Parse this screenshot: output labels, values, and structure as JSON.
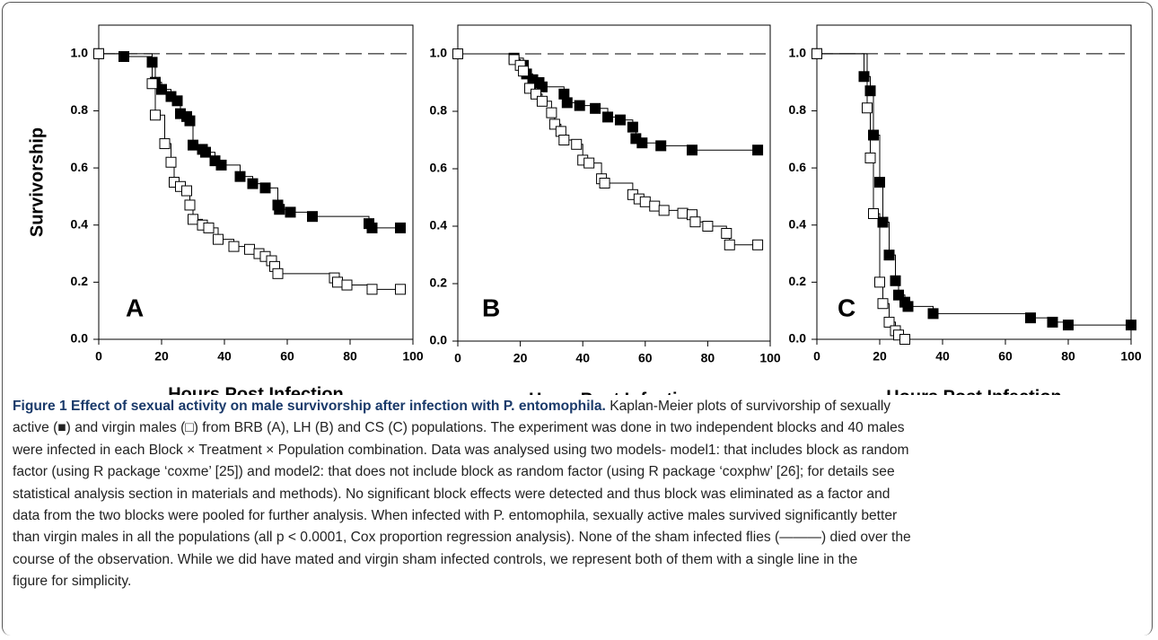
{
  "chart_data": [
    {
      "type": "step",
      "panel_label": "A",
      "ylabel": "Survivorship",
      "xlabel": "Hours Post Infection",
      "xlim": [
        0,
        100
      ],
      "xticks": [
        0,
        20,
        40,
        60,
        80,
        100
      ],
      "ylim": [
        0,
        1.1
      ],
      "yticks": [
        {
          "value": 0,
          "label": "0.0"
        },
        0.2,
        0.4,
        0.6,
        0.8,
        {
          "value": 1,
          "label": "1.0"
        }
      ],
      "reference_line": 1.0,
      "series": [
        {
          "color": "#000000",
          "marker_fill": "#000000",
          "x": [
            0,
            8,
            17,
            18,
            20,
            23,
            25,
            26,
            28,
            29,
            30,
            33,
            34,
            37,
            39,
            45,
            49,
            53,
            57,
            57.5,
            61,
            68,
            86,
            87,
            96
          ],
          "values": [
            1.0,
            0.99,
            0.97,
            0.9,
            0.875,
            0.85,
            0.835,
            0.79,
            0.78,
            0.765,
            0.68,
            0.665,
            0.655,
            0.625,
            0.61,
            0.57,
            0.545,
            0.53,
            0.47,
            0.455,
            0.445,
            0.43,
            0.405,
            0.39,
            0.39
          ]
        },
        {
          "color": "#000000",
          "marker_fill": "#ffffff",
          "x": [
            0,
            17,
            18,
            21,
            23,
            24,
            26,
            28,
            29,
            30,
            33,
            35,
            38,
            43,
            48,
            51,
            53,
            55,
            56,
            57,
            75,
            76,
            79,
            87,
            96
          ],
          "values": [
            1.0,
            0.895,
            0.785,
            0.685,
            0.62,
            0.55,
            0.535,
            0.52,
            0.47,
            0.42,
            0.4,
            0.39,
            0.35,
            0.325,
            0.315,
            0.3,
            0.29,
            0.275,
            0.255,
            0.23,
            0.215,
            0.2,
            0.19,
            0.175,
            0.175
          ]
        }
      ]
    },
    {
      "type": "step",
      "panel_label": "B",
      "xlabel": "HoursPost Infection",
      "xlim": [
        0,
        100
      ],
      "xticks": [
        0,
        20,
        40,
        60,
        80,
        100
      ],
      "ylim": [
        0,
        1.1
      ],
      "yticks": [
        {
          "value": 0,
          "label": "0.0"
        },
        0.2,
        0.4,
        0.6,
        0.8,
        {
          "value": 1,
          "label": "1.0"
        }
      ],
      "reference_line": 1.0,
      "series": [
        {
          "color": "#000000",
          "marker_fill": "#000000",
          "x": [
            0,
            18,
            21,
            22,
            24,
            26,
            27,
            34,
            35,
            39,
            44,
            48,
            52,
            56,
            57,
            59,
            65,
            75,
            96
          ],
          "values": [
            1.0,
            0.985,
            0.96,
            0.93,
            0.91,
            0.9,
            0.885,
            0.86,
            0.83,
            0.82,
            0.81,
            0.78,
            0.77,
            0.745,
            0.705,
            0.69,
            0.68,
            0.665,
            0.665
          ]
        },
        {
          "color": "#000000",
          "marker_fill": "#ffffff",
          "x": [
            0,
            18,
            20,
            21,
            23,
            25,
            27,
            30,
            31,
            33,
            34,
            38,
            40,
            42,
            46,
            47,
            56,
            58,
            60,
            63,
            66,
            72,
            75,
            76,
            80,
            86,
            87,
            96
          ],
          "values": [
            1.0,
            0.98,
            0.96,
            0.94,
            0.88,
            0.86,
            0.835,
            0.795,
            0.755,
            0.73,
            0.7,
            0.685,
            0.63,
            0.62,
            0.565,
            0.55,
            0.51,
            0.495,
            0.485,
            0.47,
            0.455,
            0.445,
            0.44,
            0.415,
            0.4,
            0.375,
            0.335,
            0.335
          ]
        }
      ]
    },
    {
      "type": "step",
      "panel_label": "C",
      "xlabel": "Hours Post Infection",
      "xlim": [
        0,
        100
      ],
      "xticks": [
        0,
        20,
        40,
        60,
        80,
        100
      ],
      "ylim": [
        0,
        1.1
      ],
      "yticks": [
        {
          "value": 0,
          "label": "0.0"
        },
        0.2,
        0.4,
        0.6,
        0.8,
        {
          "value": 1,
          "label": "1.0"
        }
      ],
      "reference_line": 1.0,
      "series": [
        {
          "color": "#000000",
          "marker_fill": "#000000",
          "x": [
            0,
            15,
            17,
            18,
            20,
            21,
            23,
            25,
            26,
            28,
            29,
            37,
            68,
            75,
            80,
            100
          ],
          "values": [
            1.0,
            0.92,
            0.87,
            0.715,
            0.55,
            0.41,
            0.295,
            0.205,
            0.155,
            0.13,
            0.115,
            0.09,
            0.075,
            0.06,
            0.05,
            0.05
          ]
        },
        {
          "color": "#000000",
          "marker_fill": "#ffffff",
          "x": [
            0,
            16,
            17,
            18,
            20,
            21,
            23,
            25,
            26,
            28
          ],
          "values": [
            1.0,
            0.81,
            0.635,
            0.44,
            0.2,
            0.125,
            0.06,
            0.03,
            0.015,
            0.0
          ]
        }
      ]
    }
  ],
  "caption": {
    "title": "Figure 1 Effect of sexual activity on male survivorship after infection with P. entomophila.",
    "lines": [
      "Kaplan-Meier plots of survivorship of sexually",
      "active (■) and virgin males (□) from BRB (A), LH (B) and CS (C) populations. The experiment was done in two independent blocks and 40 males",
      "were infected in each Block × Treatment × Population combination. Data was analysed using two models- model1: that includes block as random",
      "factor (using R package ‘coxme’ [25]) and model2: that does not include block as random factor (using R package ‘coxphw’ [26]; for details see",
      "statistical analysis section in materials and methods). No significant block effects were detected and thus block was eliminated as a factor and",
      "data from the two blocks were pooled for further analysis. When infected with P. entomophila, sexually active males survived significantly better",
      "than virgin males in all the populations (all p < 0.0001, Cox proportion regression analysis). None of the sham infected flies (———) died over the",
      "course of the observation. While we did have mated and virgin sham infected controls, we represent both of them with a single line in the",
      "figure for simplicity."
    ]
  }
}
